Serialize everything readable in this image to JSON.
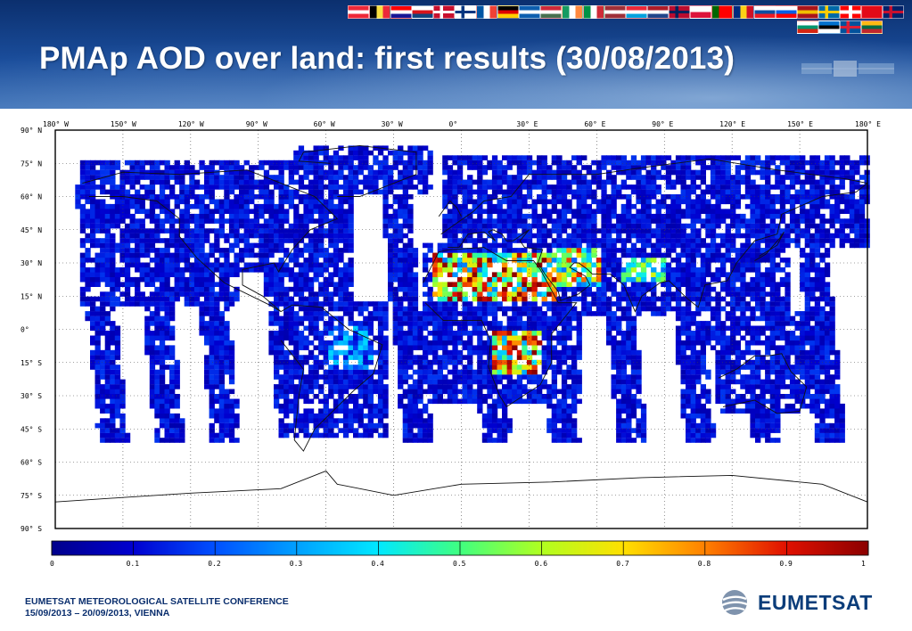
{
  "slide": {
    "title": "PMAp AOD over land: first results (30/08/2013)",
    "footer_line1": "EUMETSAT METEOROLOGICAL SATELLITE CONFERENCE",
    "footer_line2": "15/09/2013 – 20/09/2013, VIENNA",
    "logo_text": "EUMETSAT",
    "logo_icon": "eumetsat-globe-icon"
  },
  "flags": [
    {
      "name": "austria",
      "colors": [
        "#ed2939",
        "#ffffff",
        "#ed2939"
      ],
      "dir": "h"
    },
    {
      "name": "belgium",
      "colors": [
        "#000000",
        "#fae042",
        "#ed2939"
      ],
      "dir": "v"
    },
    {
      "name": "croatia",
      "colors": [
        "#ff0000",
        "#ffffff",
        "#171796"
      ],
      "dir": "h"
    },
    {
      "name": "czech",
      "colors": [
        "#ffffff",
        "#d7141a",
        "#11457e"
      ],
      "dir": "h"
    },
    {
      "name": "denmark",
      "colors": [
        "#c8102e",
        "#ffffff"
      ],
      "dir": "cross"
    },
    {
      "name": "finland",
      "colors": [
        "#ffffff",
        "#003580"
      ],
      "dir": "cross"
    },
    {
      "name": "france",
      "colors": [
        "#0055a4",
        "#ffffff",
        "#ef4135"
      ],
      "dir": "v"
    },
    {
      "name": "germany",
      "colors": [
        "#000000",
        "#dd0000",
        "#ffce00"
      ],
      "dir": "h"
    },
    {
      "name": "greece",
      "colors": [
        "#0d5eaf",
        "#ffffff",
        "#0d5eaf"
      ],
      "dir": "h"
    },
    {
      "name": "hungary",
      "colors": [
        "#ce2939",
        "#ffffff",
        "#477050"
      ],
      "dir": "h"
    },
    {
      "name": "ireland",
      "colors": [
        "#169b62",
        "#ffffff",
        "#ff883e"
      ],
      "dir": "v"
    },
    {
      "name": "italy",
      "colors": [
        "#009246",
        "#ffffff",
        "#ce2b37"
      ],
      "dir": "v"
    },
    {
      "name": "latvia",
      "colors": [
        "#9e3039",
        "#ffffff",
        "#9e3039"
      ],
      "dir": "h"
    },
    {
      "name": "luxembourg",
      "colors": [
        "#ed2939",
        "#ffffff",
        "#00a1de"
      ],
      "dir": "h"
    },
    {
      "name": "netherlands",
      "colors": [
        "#ae1c28",
        "#ffffff",
        "#21468b"
      ],
      "dir": "h"
    },
    {
      "name": "norway",
      "colors": [
        "#ba0c2f",
        "#00205b"
      ],
      "dir": "cross"
    },
    {
      "name": "poland",
      "colors": [
        "#ffffff",
        "#dc143c"
      ],
      "dir": "h"
    },
    {
      "name": "portugal",
      "colors": [
        "#006600",
        "#ff0000",
        "#ff0000"
      ],
      "dir": "v"
    },
    {
      "name": "romania",
      "colors": [
        "#002b7f",
        "#fcd116",
        "#ce1126"
      ],
      "dir": "v"
    },
    {
      "name": "slovakia",
      "colors": [
        "#ffffff",
        "#0b4ea2",
        "#ee1c25"
      ],
      "dir": "h"
    },
    {
      "name": "slovenia",
      "colors": [
        "#ffffff",
        "#005ce5",
        "#ff0000"
      ],
      "dir": "h"
    },
    {
      "name": "spain",
      "colors": [
        "#aa151b",
        "#f1bf00",
        "#aa151b"
      ],
      "dir": "h"
    },
    {
      "name": "sweden",
      "colors": [
        "#006aa7",
        "#fecc00"
      ],
      "dir": "cross"
    },
    {
      "name": "switzerland",
      "colors": [
        "#ff0000",
        "#ffffff"
      ],
      "dir": "plus"
    },
    {
      "name": "turkey",
      "colors": [
        "#e30a17",
        "#ffffff"
      ],
      "dir": "solid"
    },
    {
      "name": "uk",
      "colors": [
        "#012169",
        "#c8102e"
      ],
      "dir": "cross"
    },
    {
      "name": "bulgaria",
      "colors": [
        "#ffffff",
        "#00966e",
        "#d62612"
      ],
      "dir": "h"
    },
    {
      "name": "estonia",
      "colors": [
        "#0072ce",
        "#000000",
        "#ffffff"
      ],
      "dir": "h"
    },
    {
      "name": "iceland",
      "colors": [
        "#02529c",
        "#dc1e35"
      ],
      "dir": "cross"
    },
    {
      "name": "lithuania",
      "colors": [
        "#fdb913",
        "#006a44",
        "#c1272d"
      ],
      "dir": "h"
    }
  ],
  "map": {
    "lon_labels": [
      "180° W",
      "150° W",
      "120° W",
      "90° W",
      "60° W",
      "30° W",
      "0°",
      "30° E",
      "60° E",
      "90° E",
      "120° E",
      "150° E",
      "180° E"
    ],
    "lat_labels": [
      "90° N",
      "75° N",
      "60° N",
      "45° N",
      "30° N",
      "15° N",
      "0°",
      "15° S",
      "30° S",
      "45° S",
      "60° S",
      "75° S",
      "90° S"
    ]
  },
  "colorbar": {
    "min": 0,
    "max": 1,
    "tick_labels": [
      "0",
      "0.1",
      "0.2",
      "0.3",
      "0.4",
      "0.5",
      "0.6",
      "0.7",
      "0.8",
      "0.9",
      "1"
    ],
    "colors": [
      "#00008b",
      "#0000d0",
      "#0050ff",
      "#00a0ff",
      "#00e8ff",
      "#40ff80",
      "#b0ff20",
      "#ffe000",
      "#ff8000",
      "#e01000",
      "#8b0000"
    ]
  }
}
